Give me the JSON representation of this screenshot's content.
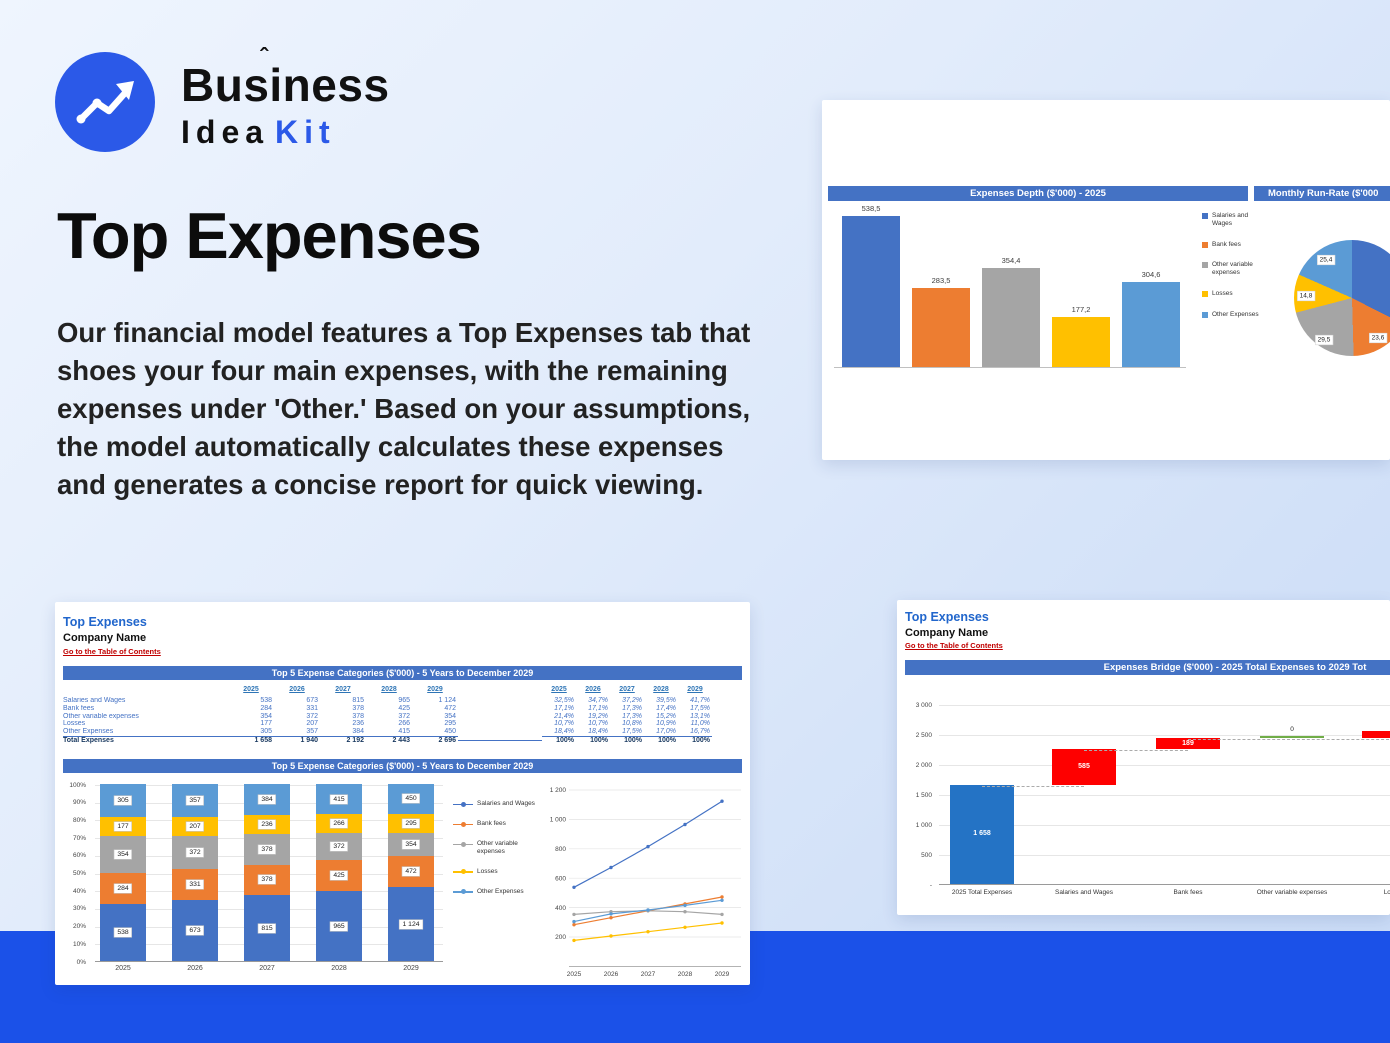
{
  "brand": {
    "name": "Business",
    "accent": "ˆ",
    "idea": "Idea",
    "kit": "Kit"
  },
  "hero": {
    "title": "Top Expenses",
    "description": "Our financial model features a Top Expenses tab that shoes your four main expenses, with the remaining expenses under 'Other.' Based on your assumptions, the model automatically calculates these expenses and generates a concise report for quick viewing."
  },
  "palette": {
    "brand_blue": "#2b59e8",
    "band_blue": "#1b51e8",
    "excel_header_blue": "#4472c4",
    "link_red": "#c00000",
    "series_colors": [
      "#4472c4",
      "#ed7d31",
      "#a5a5a5",
      "#ffc000",
      "#5b9bd5"
    ],
    "waterfall_blue": "#2473c5",
    "waterfall_red": "#fe0000",
    "waterfall_green": "#70ad47"
  },
  "series_names": [
    "Salaries and Wages",
    "Bank fees",
    "Other variable expenses",
    "Losses",
    "Other Expenses"
  ],
  "top_screenshot": {
    "depth_header": "Expenses Depth ($'000) - 2025",
    "runrate_header": "Monthly Run-Rate ($'000",
    "chart_data": [
      {
        "type": "bar",
        "title": "Expenses Depth ($'000) - 2025",
        "categories": [
          "Salaries and Wages",
          "Bank fees",
          "Other variable expenses",
          "Losses",
          "Other Expenses"
        ],
        "values": [
          538.5,
          283.5,
          354.4,
          177.2,
          304.6
        ],
        "value_labels": [
          "538,5",
          "283,5",
          "354,4",
          "177,2",
          "304,6"
        ],
        "ylim": [
          0,
          600
        ],
        "legend_position": "right"
      },
      {
        "type": "pie",
        "title": "Monthly Run-Rate ($'000",
        "labels": [
          "Salaries and Wages",
          "Bank fees",
          "Other variable expenses",
          "Losses",
          "Other Expenses"
        ],
        "values": [
          44.9,
          23.6,
          29.5,
          14.8,
          25.4
        ],
        "slice_labels": [
          "",
          "23,6",
          "29,5",
          "14,8",
          "25,4"
        ]
      }
    ]
  },
  "sheet1": {
    "title": "Top Expenses",
    "company": "Company Name",
    "toc_link": "Go to the Table of Contents",
    "table_header": "Top 5 Expense Categories ($'000) - 5 Years to December 2029",
    "years": [
      "2025",
      "2026",
      "2027",
      "2028",
      "2029"
    ],
    "rows": [
      {
        "label": "Salaries and Wages",
        "values": [
          "538",
          "673",
          "815",
          "965",
          "1 124"
        ],
        "pcts": [
          "32,5%",
          "34,7%",
          "37,2%",
          "39,5%",
          "41,7%"
        ]
      },
      {
        "label": "Bank fees",
        "values": [
          "284",
          "331",
          "378",
          "425",
          "472"
        ],
        "pcts": [
          "17,1%",
          "17,1%",
          "17,3%",
          "17,4%",
          "17,5%"
        ]
      },
      {
        "label": "Other variable expenses",
        "values": [
          "354",
          "372",
          "378",
          "372",
          "354"
        ],
        "pcts": [
          "21,4%",
          "19,2%",
          "17,3%",
          "15,2%",
          "13,1%"
        ]
      },
      {
        "label": "Losses",
        "values": [
          "177",
          "207",
          "236",
          "266",
          "295"
        ],
        "pcts": [
          "10,7%",
          "10,7%",
          "10,8%",
          "10,9%",
          "11,0%"
        ]
      },
      {
        "label": "Other Expenses",
        "values": [
          "305",
          "357",
          "384",
          "415",
          "450"
        ],
        "pcts": [
          "18,4%",
          "18,4%",
          "17,5%",
          "17,0%",
          "16,7%"
        ]
      }
    ],
    "total_row": {
      "label": "Total Expenses",
      "values": [
        "1 658",
        "1 940",
        "2 192",
        "2 443",
        "2 696"
      ],
      "pcts": [
        "100%",
        "100%",
        "100%",
        "100%",
        "100%"
      ]
    },
    "chart_header": "Top 5 Expense Categories ($'000) - 5 Years to December 2029",
    "chart_data": [
      {
        "type": "bar",
        "stacked": true,
        "stacked_pct": true,
        "categories": [
          "2025",
          "2026",
          "2027",
          "2028",
          "2029"
        ],
        "series": [
          {
            "name": "Salaries and Wages",
            "values": [
              538,
              673,
              815,
              965,
              1124
            ],
            "labels": [
              "538",
              "673",
              "815",
              "965",
              "1 124"
            ]
          },
          {
            "name": "Bank fees",
            "values": [
              284,
              331,
              378,
              425,
              472
            ],
            "labels": [
              "284",
              "331",
              "378",
              "425",
              "472"
            ]
          },
          {
            "name": "Other variable expenses",
            "values": [
              354,
              372,
              378,
              372,
              354
            ],
            "labels": [
              "354",
              "372",
              "378",
              "372",
              "354"
            ]
          },
          {
            "name": "Losses",
            "values": [
              177,
              207,
              236,
              266,
              295
            ],
            "labels": [
              "177",
              "207",
              "236",
              "266",
              "295"
            ]
          },
          {
            "name": "Other Expenses",
            "values": [
              305,
              357,
              384,
              415,
              450
            ],
            "labels": [
              "305",
              "357",
              "384",
              "415",
              "450"
            ]
          }
        ],
        "totals": [
          1658,
          1940,
          2192,
          2443,
          2696
        ],
        "y_ticks": [
          "100%",
          "90%",
          "80%",
          "70%",
          "60%",
          "50%",
          "40%",
          "30%",
          "20%",
          "10%",
          "0%"
        ]
      },
      {
        "type": "line",
        "x": [
          "2025",
          "2026",
          "2027",
          "2028",
          "2029"
        ],
        "series": [
          {
            "name": "Salaries and Wages",
            "values": [
              538,
              673,
              815,
              965,
              1124
            ]
          },
          {
            "name": "Bank fees",
            "values": [
              284,
              331,
              378,
              425,
              472
            ]
          },
          {
            "name": "Other variable expenses",
            "values": [
              354,
              372,
              378,
              372,
              354
            ]
          },
          {
            "name": "Losses",
            "values": [
              177,
              207,
              236,
              266,
              295
            ]
          },
          {
            "name": "Other Expenses",
            "values": [
              305,
              357,
              384,
              415,
              450
            ]
          }
        ],
        "y_ticks": [
          "1 200",
          "1 000",
          "800",
          "600",
          "400",
          "200"
        ],
        "ylim": [
          0,
          1200
        ]
      }
    ]
  },
  "sheet2": {
    "title": "Top Expenses",
    "company": "Company Name",
    "toc_link": "Go to the Table of Contents",
    "chart_header": "Expenses Bridge ($'000) - 2025 Total Expenses to 2029 Tot",
    "chart_data": {
      "type": "waterfall",
      "categories": [
        "2025 Total Expenses",
        "Salaries and Wages",
        "Bank fees",
        "Other variable expenses",
        "Losses"
      ],
      "bars": [
        {
          "start": 0,
          "end": 1658,
          "label": "1 658",
          "color": "blue"
        },
        {
          "start": 1658,
          "end": 2243,
          "label": "585",
          "color": "red"
        },
        {
          "start": 2243,
          "end": 2432,
          "label": "189",
          "color": "red"
        },
        {
          "start": 2432,
          "end": 2432,
          "label": "0",
          "color": "green"
        },
        {
          "start": 2432,
          "end": 2550,
          "label": "",
          "color": "red"
        }
      ],
      "y_ticks": [
        "3 000",
        "2 500",
        "2 000",
        "1 500",
        "1 000",
        "500",
        "-"
      ],
      "ylim": [
        0,
        3000
      ]
    }
  }
}
